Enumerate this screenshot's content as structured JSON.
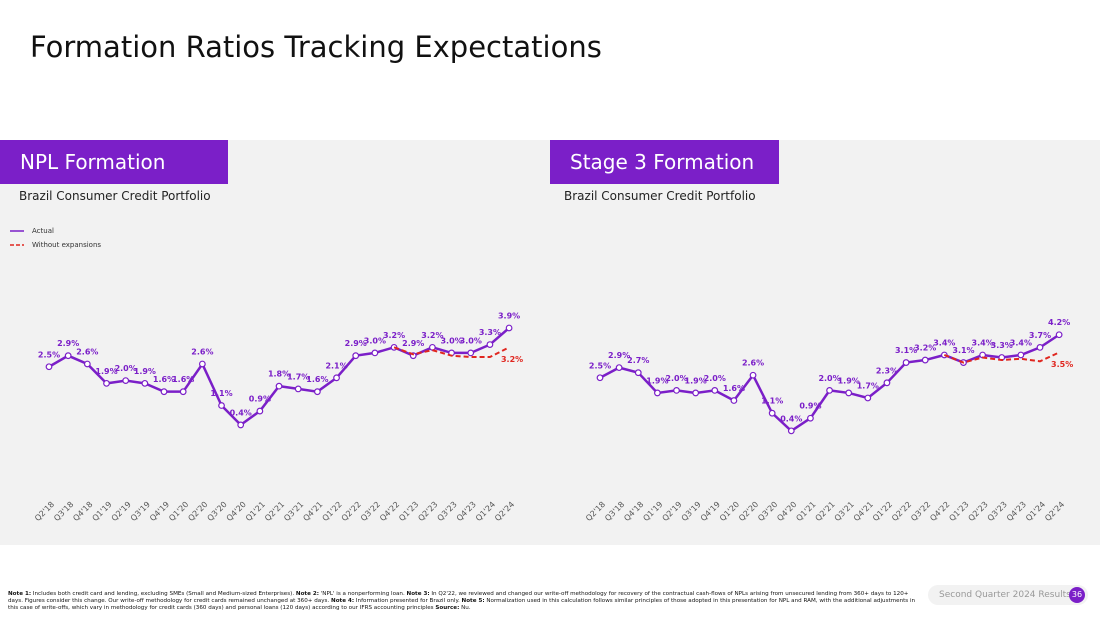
{
  "title": "Formation Ratios Tracking Expectations",
  "chart_data": [
    {
      "type": "line",
      "title": "NPL Formation",
      "subtitle": "Brazil Consumer Credit Portfolio",
      "legend": "top-left",
      "categories": [
        "Q2'18",
        "Q3'18",
        "Q4'18",
        "Q1'19",
        "Q2'19",
        "Q3'19",
        "Q4'19",
        "Q1'20",
        "Q2'20",
        "Q3'20",
        "Q4'20",
        "Q1'21",
        "Q2'21",
        "Q3'21",
        "Q4'21",
        "Q1'22",
        "Q2'22",
        "Q3'22",
        "Q4'22",
        "Q1'23",
        "Q2'23",
        "Q3'23",
        "Q4'23",
        "Q1'24",
        "Q2'24"
      ],
      "series": [
        {
          "name": "Actual",
          "color": "#7b1fc8",
          "style": "solid",
          "markers": true,
          "values": [
            2.5,
            2.9,
            2.6,
            1.9,
            2.0,
            1.9,
            1.6,
            1.6,
            2.6,
            1.1,
            0.4,
            0.9,
            1.8,
            1.7,
            1.6,
            2.1,
            2.9,
            3.0,
            3.2,
            2.9,
            3.2,
            3.0,
            3.0,
            3.3,
            3.9
          ],
          "value_labels": [
            "2.5%",
            "2.9%",
            "2.6%",
            "1.9%",
            "2.0%",
            "1.9%",
            "1.6%",
            "1.6%",
            "2.6%",
            "1.1%",
            "0.4%",
            "0.9%",
            "1.8%",
            "1.7%",
            "1.6%",
            "2.1%",
            "2.9%",
            "3.0%",
            "3.2%",
            "2.9%",
            "3.2%",
            "3.0%",
            "3.0%",
            "3.3%",
            "3.9%"
          ]
        },
        {
          "name": "Without expansions",
          "color": "#e0261f",
          "style": "dashed",
          "markers": false,
          "values": [
            null,
            null,
            null,
            null,
            null,
            null,
            null,
            null,
            null,
            null,
            null,
            null,
            null,
            null,
            null,
            null,
            null,
            null,
            3.2,
            2.95,
            3.1,
            2.9,
            2.85,
            2.85,
            3.2
          ],
          "value_labels": [
            null,
            null,
            null,
            null,
            null,
            null,
            null,
            null,
            null,
            null,
            null,
            null,
            null,
            null,
            null,
            null,
            null,
            null,
            null,
            null,
            null,
            null,
            null,
            null,
            "3.2%"
          ]
        }
      ]
    },
    {
      "type": "line",
      "title": "Stage 3 Formation",
      "subtitle": "Brazil Consumer Credit Portfolio",
      "legend": "none",
      "categories": [
        "Q2'18",
        "Q3'18",
        "Q4'18",
        "Q1'19",
        "Q2'19",
        "Q3'19",
        "Q4'19",
        "Q1'20",
        "Q2'20",
        "Q3'20",
        "Q4'20",
        "Q1'21",
        "Q2'21",
        "Q3'21",
        "Q4'21",
        "Q1'22",
        "Q2'22",
        "Q3'22",
        "Q4'22",
        "Q1'23",
        "Q2'23",
        "Q3'23",
        "Q4'23",
        "Q1'24",
        "Q2'24"
      ],
      "series": [
        {
          "color": "#7b1fc8",
          "style": "solid",
          "markers": true,
          "values": [
            2.5,
            2.9,
            2.7,
            1.9,
            2.0,
            1.9,
            2.0,
            1.6,
            2.6,
            1.1,
            0.4,
            0.9,
            2.0,
            1.9,
            1.7,
            2.3,
            3.1,
            3.2,
            3.4,
            3.1,
            3.4,
            3.3,
            3.4,
            3.7,
            4.2
          ],
          "value_labels": [
            "2.5%",
            "2.9%",
            "2.7%",
            "1.9%",
            "2.0%",
            "1.9%",
            "2.0%",
            "1.6%",
            "2.6%",
            "1.1%",
            "0.4%",
            "0.9%",
            "2.0%",
            "1.9%",
            "1.7%",
            "2.3%",
            "3.1%",
            "3.2%",
            "3.4%",
            "3.1%",
            "3.4%",
            "3.3%",
            "3.4%",
            "3.7%",
            "4.2%"
          ]
        },
        {
          "color": "#e0261f",
          "style": "dashed",
          "markers": false,
          "values": [
            null,
            null,
            null,
            null,
            null,
            null,
            null,
            null,
            null,
            null,
            null,
            null,
            null,
            null,
            null,
            null,
            null,
            null,
            3.4,
            3.1,
            3.3,
            3.2,
            3.25,
            3.15,
            3.5
          ],
          "value_labels": [
            null,
            null,
            null,
            null,
            null,
            null,
            null,
            null,
            null,
            null,
            null,
            null,
            null,
            null,
            null,
            null,
            null,
            null,
            null,
            null,
            null,
            null,
            null,
            null,
            "3.5%"
          ]
        }
      ]
    }
  ],
  "notes": [
    {
      "label": "Note 1:",
      "text": " Includes both credit card and lending, excluding SMEs (Small and Medium-sized Enterprises). "
    },
    {
      "label": "Note 2:",
      "text": " 'NPL' is a nonperforming loan. "
    },
    {
      "label": "Note 3:",
      "text": " In Q2'22, we reviewed and changed our write-off methodology for recovery of the contractual cash-flows of NPLs arising from unsecured lending from 360+ days to 120+ days. Figures consider this change. Our write-off methodology for credit cards remained unchanged at 360+ days. "
    },
    {
      "label": "Note 4:",
      "text": " Information presented for Brazil only. "
    },
    {
      "label": "Note 5:",
      "text": " Normalization used in this calculation follows similar principles of those adopted in this presentation for NPL and RAM, with the additional adjustments in this case of write-offs, which vary in methodology for credit cards (360 days) and personal loans (120 days) according to our IFRS accounting principles "
    },
    {
      "label": "Source:",
      "text": " Nu."
    }
  ],
  "footer": {
    "text": "Second Quarter 2024 Results",
    "page": "36"
  }
}
